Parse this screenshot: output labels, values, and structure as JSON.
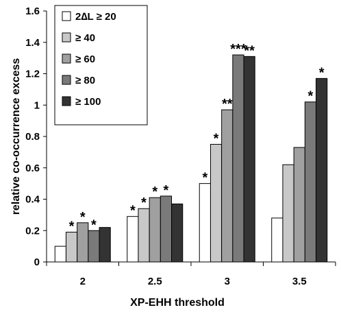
{
  "chart_data": {
    "type": "bar",
    "title": "",
    "xlabel": "XP-EHH threshold",
    "ylabel": "relative co-occurrence excess",
    "categories": [
      "2",
      "2.5",
      "3",
      "3.5"
    ],
    "ylim": [
      0,
      1.6
    ],
    "yticks": [
      "0",
      "0.2",
      "0.4",
      "0.6",
      "0.8",
      "1",
      "1.2",
      "1.4",
      "1.6"
    ],
    "grid": false,
    "legend_position": "top-left",
    "series": [
      {
        "name": "2∆L ≥ 20",
        "color": "#ffffff",
        "values": [
          0.1,
          0.29,
          0.5,
          0.28
        ],
        "annotations": [
          "",
          "*",
          "*",
          ""
        ]
      },
      {
        "name": "≥ 40",
        "color": "#c8c8c8",
        "values": [
          0.19,
          0.34,
          0.75,
          0.62
        ],
        "annotations": [
          "*",
          "*",
          "*",
          ""
        ]
      },
      {
        "name": "≥ 60",
        "color": "#a0a0a0",
        "values": [
          0.25,
          0.41,
          0.97,
          0.73
        ],
        "annotations": [
          "*",
          "*",
          "**",
          ""
        ]
      },
      {
        "name": "≥ 80",
        "color": "#7a7a7a",
        "values": [
          0.2,
          0.42,
          1.32,
          1.02
        ],
        "annotations": [
          "*",
          "*",
          "***",
          "*"
        ]
      },
      {
        "name": "≥ 100",
        "color": "#333333",
        "values": [
          0.22,
          0.37,
          1.31,
          1.17
        ],
        "annotations": [
          "",
          "",
          "**",
          "*"
        ]
      }
    ]
  }
}
